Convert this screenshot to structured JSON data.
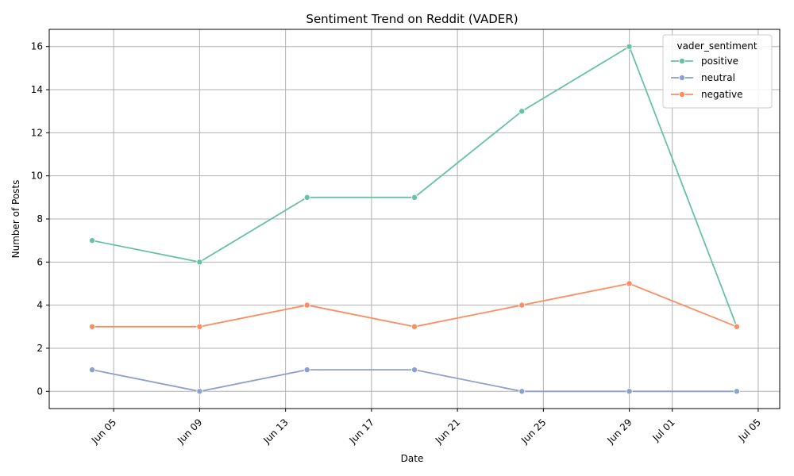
{
  "chart_data": {
    "type": "line",
    "title": "Sentiment Trend on Reddit (VADER)",
    "xlabel": "Date",
    "ylabel": "Number of Posts",
    "x": [
      "2025-06-04",
      "2025-06-09",
      "2025-06-14",
      "2025-06-19",
      "2025-06-24",
      "2025-06-29",
      "2025-07-04"
    ],
    "xlim": [
      "2025-06-02",
      "2025-07-06"
    ],
    "x_ticks": [
      {
        "date": "2025-06-05",
        "label": "Jun 05"
      },
      {
        "date": "2025-06-09",
        "label": "Jun 09"
      },
      {
        "date": "2025-06-13",
        "label": "Jun 13"
      },
      {
        "date": "2025-06-17",
        "label": "Jun 17"
      },
      {
        "date": "2025-06-21",
        "label": "Jun 21"
      },
      {
        "date": "2025-06-25",
        "label": "Jun 25"
      },
      {
        "date": "2025-06-29",
        "label": "Jun 29"
      },
      {
        "date": "2025-07-01",
        "label": "Jul 01"
      },
      {
        "date": "2025-07-05",
        "label": "Jul 05"
      }
    ],
    "ylim": [
      -0.8,
      16.8
    ],
    "y_ticks": [
      0,
      2,
      4,
      6,
      8,
      10,
      12,
      14,
      16
    ],
    "grid": true,
    "legend": {
      "title": "vader_sentiment",
      "placement": "top-right"
    },
    "series": [
      {
        "name": "positive",
        "color": "#66c2a5",
        "values": [
          7,
          6,
          9,
          9,
          13,
          16,
          3
        ]
      },
      {
        "name": "neutral",
        "color": "#8da0cb",
        "values": [
          1,
          0,
          1,
          1,
          0,
          0,
          0
        ]
      },
      {
        "name": "negative",
        "color": "#fc8d62",
        "values": [
          3,
          3,
          4,
          3,
          4,
          5,
          3
        ]
      }
    ]
  }
}
